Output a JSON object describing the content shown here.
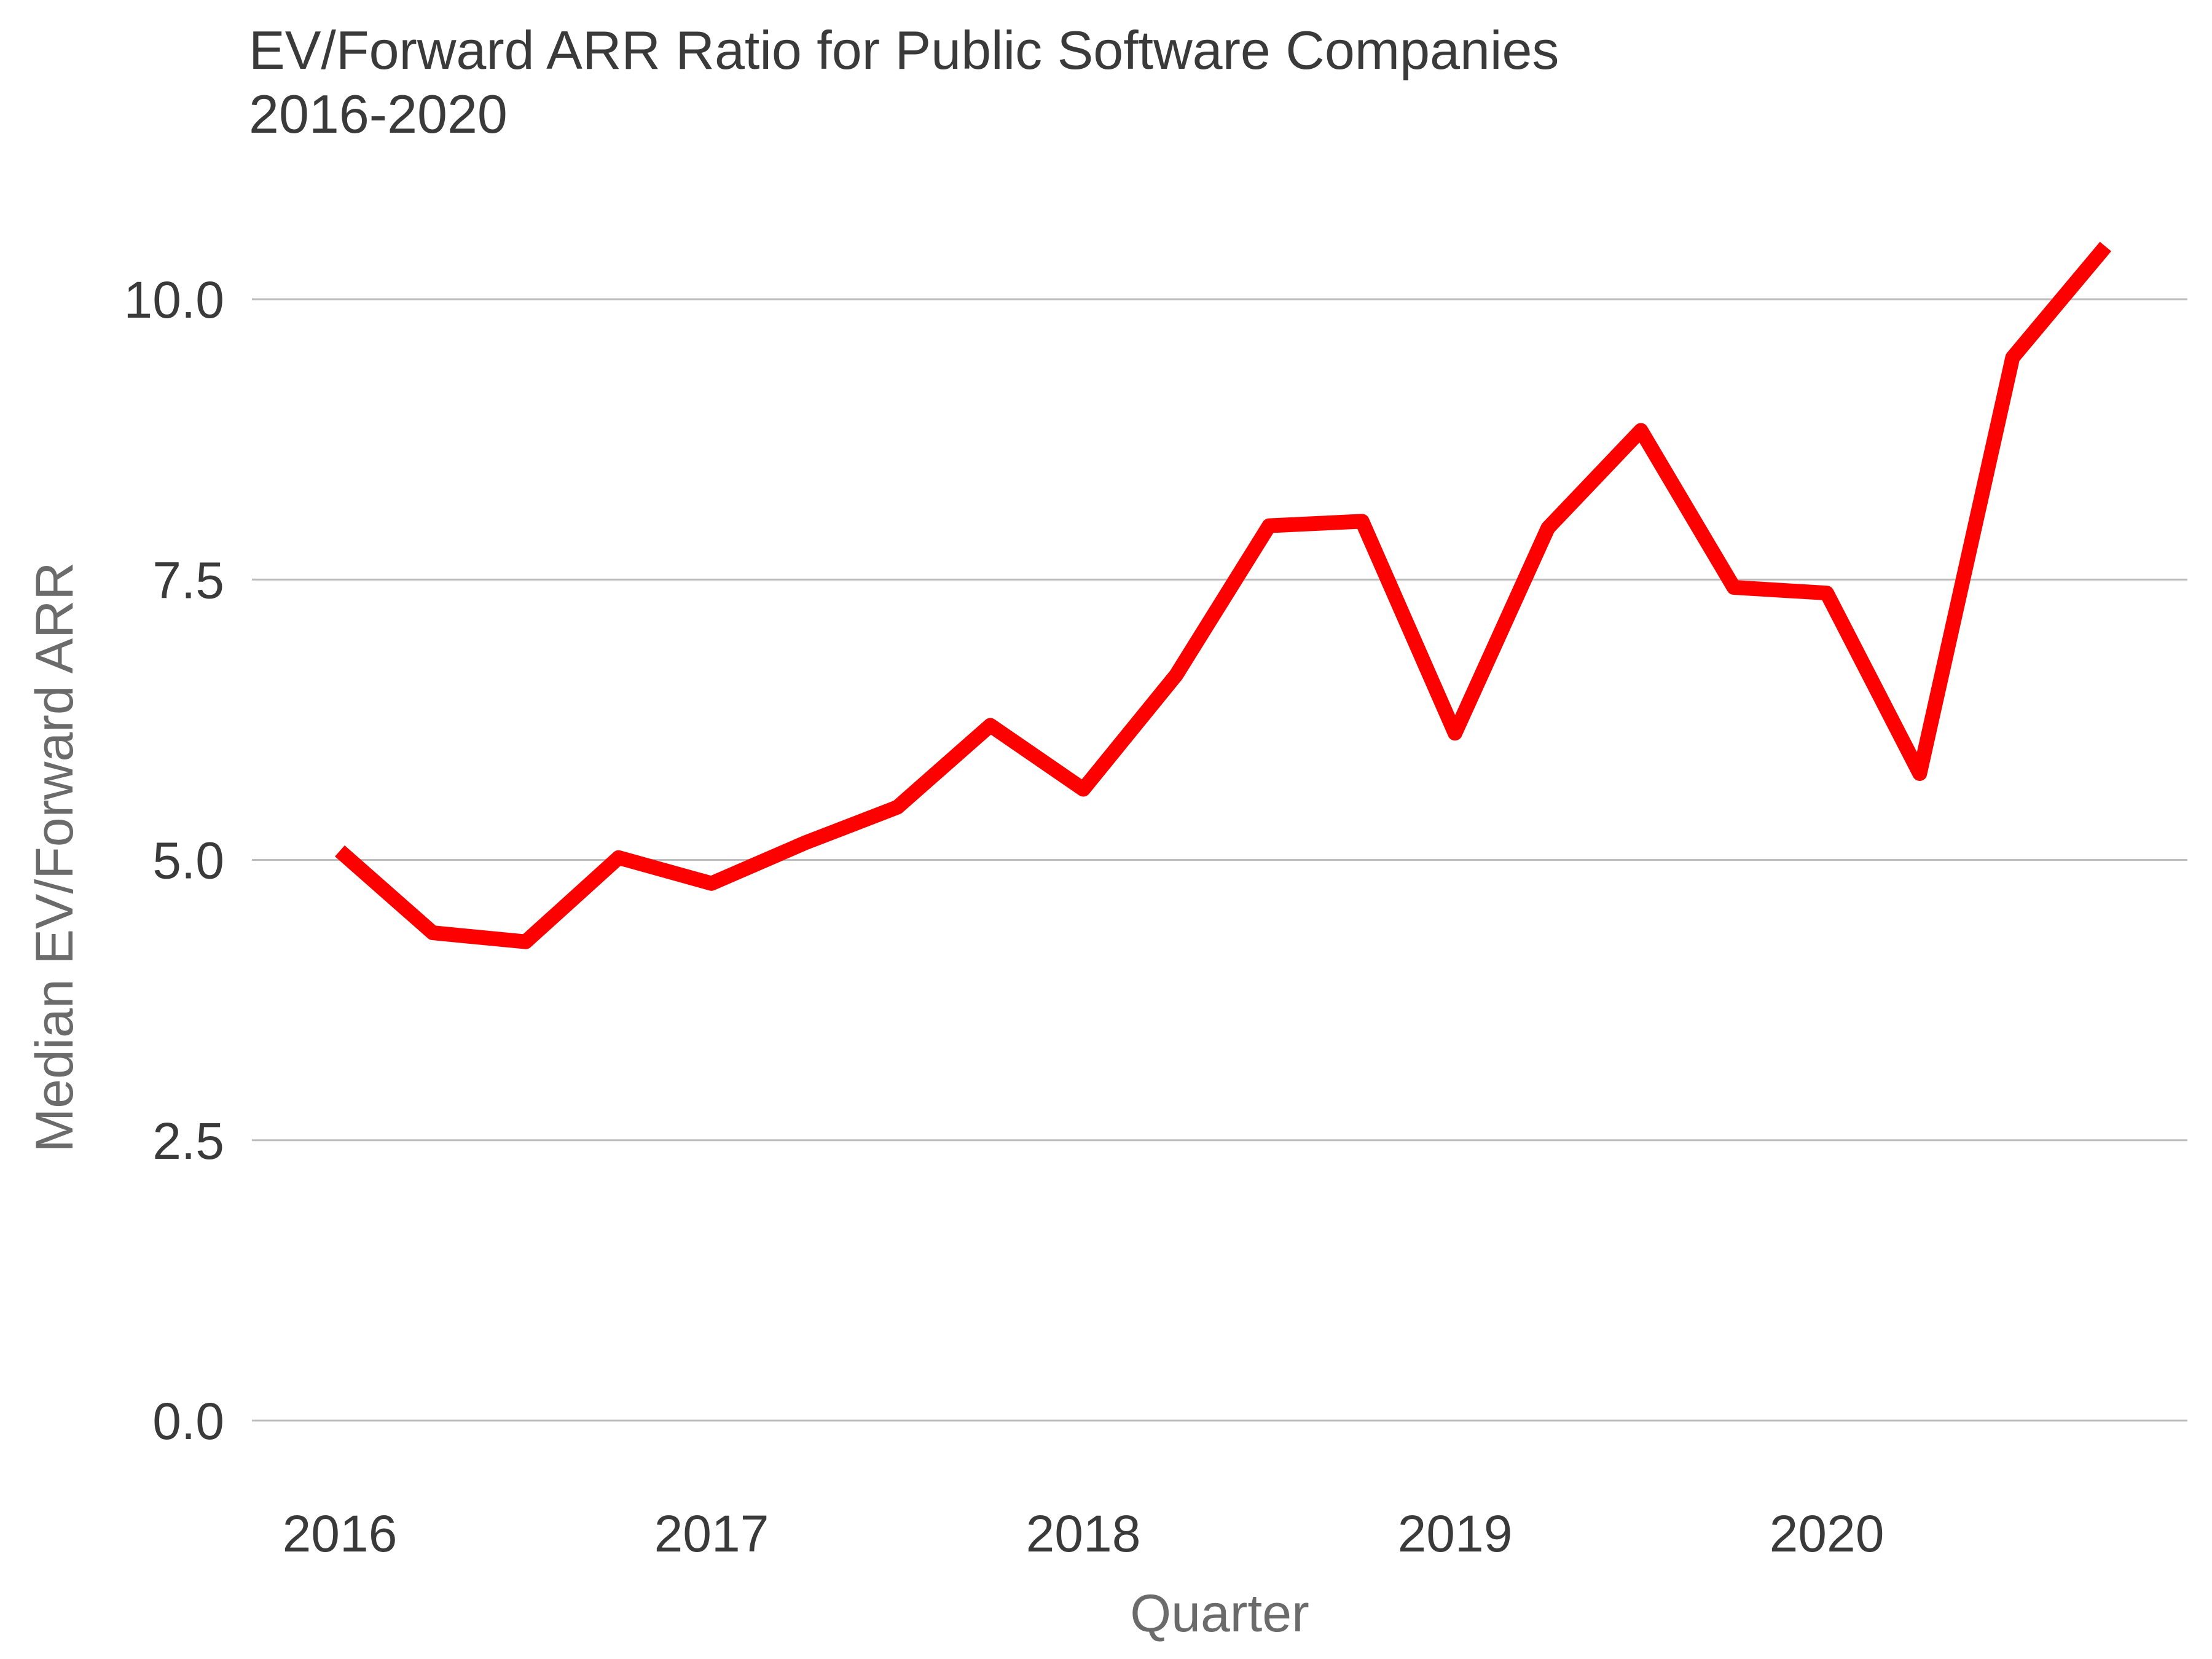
{
  "title_line1": "EV/Forward ARR Ratio for Public Software Companies",
  "title_line2": "2016-2020",
  "chart_data": {
    "type": "line",
    "title": "EV/Forward ARR Ratio for Public Software Companies 2016-2020",
    "xlabel": "Quarter",
    "ylabel": "Median EV/Forward ARR",
    "x_tick_labels": [
      "2016",
      "2017",
      "2018",
      "2019",
      "2020"
    ],
    "y_tick_labels": [
      "0.0",
      "2.5",
      "5.0",
      "7.5",
      "10.0"
    ],
    "y_ticks": [
      0,
      2.5,
      5.0,
      7.5,
      10.0
    ],
    "xlim": [
      2015.9,
      2021.0
    ],
    "ylim": [
      -0.5,
      11.2
    ],
    "grid": "horizontal",
    "line_color": "#ff0000",
    "x": [
      2016.0,
      2016.25,
      2016.5,
      2016.75,
      2017.0,
      2017.25,
      2017.5,
      2017.75,
      2018.0,
      2018.25,
      2018.5,
      2018.75,
      2019.0,
      2019.25,
      2019.5,
      2019.75,
      2020.0,
      2020.25,
      2020.5,
      2020.75
    ],
    "values": [
      5.08,
      4.35,
      4.27,
      5.02,
      4.79,
      5.15,
      5.47,
      6.2,
      5.63,
      6.65,
      7.98,
      8.02,
      6.13,
      7.96,
      8.83,
      7.43,
      7.38,
      5.77,
      9.48,
      10.47
    ]
  }
}
